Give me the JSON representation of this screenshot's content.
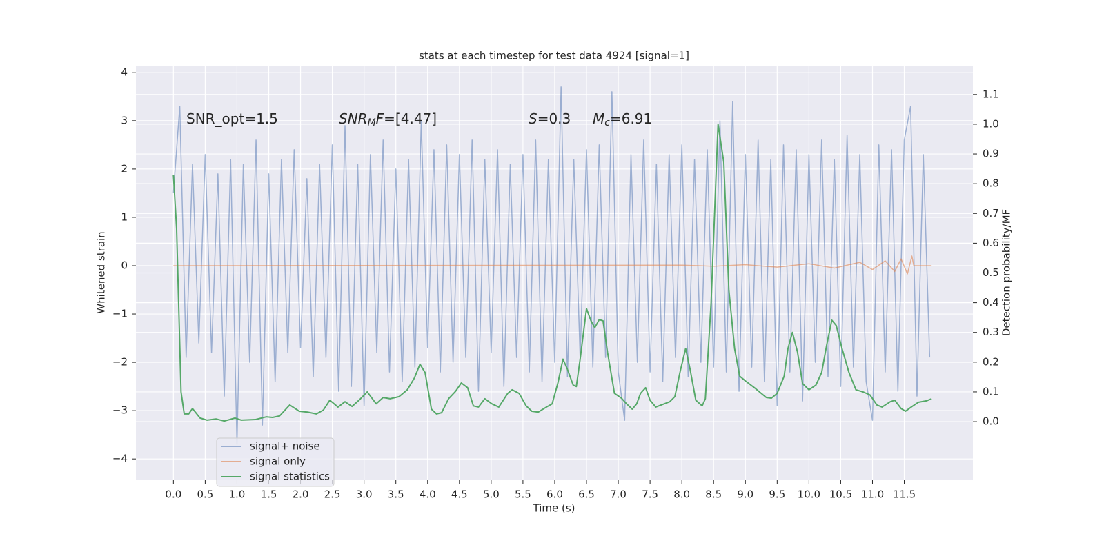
{
  "chart_data": {
    "type": "line",
    "title": "stats at each timestep for test data 4924 [signal=1]",
    "xlabel": "Time (s)",
    "ylabel": "Whitened strain",
    "y2label": "Detection probability/MF",
    "xlim": [
      -0.59,
      12.58
    ],
    "ylim": [
      -4.44,
      4.14
    ],
    "y2lim": [
      -0.197,
      1.197
    ],
    "xticks": [
      {
        "value": 0,
        "label": "0.0"
      },
      0.5,
      {
        "value": 1,
        "label": "1.0"
      },
      1.5,
      {
        "value": 2,
        "label": "2.0"
      },
      2.5,
      {
        "value": 3,
        "label": "3.0"
      },
      3.5,
      {
        "value": 4,
        "label": "4.0"
      },
      4.5,
      {
        "value": 5,
        "label": "5.0"
      },
      5.5,
      {
        "value": 6,
        "label": "6.0"
      },
      6.5,
      {
        "value": 7,
        "label": "7.0"
      },
      7.5,
      {
        "value": 8,
        "label": "8.0"
      },
      8.5,
      {
        "value": 9,
        "label": "9.0"
      },
      9.5,
      {
        "value": 10,
        "label": "10.0"
      },
      10.5,
      {
        "value": 11,
        "label": "11.0"
      },
      11.5
    ],
    "yticks": [
      {
        "value": -4,
        "label": "−4"
      },
      {
        "value": -3,
        "label": "−3"
      },
      {
        "value": -2,
        "label": "−2"
      },
      {
        "value": -1,
        "label": "−1"
      },
      0,
      1,
      2,
      3,
      4
    ],
    "y2ticks": [
      {
        "value": 0,
        "label": "0.0"
      },
      0.1,
      0.2,
      0.3,
      0.4,
      0.5,
      0.6,
      0.7,
      0.8,
      0.9,
      {
        "value": 1,
        "label": "1.0"
      },
      1.1
    ],
    "grid": true,
    "legend": "lower left",
    "x": [
      0,
      0.1,
      0.2,
      0.3,
      0.4,
      0.5,
      0.6,
      0.7,
      0.8,
      0.9,
      1,
      1.1,
      1.2,
      1.3,
      1.4,
      1.5,
      1.6,
      1.7,
      1.8,
      1.9,
      2,
      2.1,
      2.2,
      2.3,
      2.4,
      2.5,
      2.6,
      2.7,
      2.8,
      2.9,
      3,
      3.1,
      3.2,
      3.3,
      3.4,
      3.5,
      3.6,
      3.7,
      3.8,
      3.9,
      4,
      4.1,
      4.2,
      4.3,
      4.4,
      4.5,
      4.6,
      4.7,
      4.8,
      4.9,
      5,
      5.1,
      5.2,
      5.3,
      5.4,
      5.5,
      5.6,
      5.7,
      5.8,
      5.9,
      6,
      6.1,
      6.2,
      6.3,
      6.4,
      6.5,
      6.6,
      6.7,
      6.8,
      6.9,
      7,
      7.1,
      7.2,
      7.3,
      7.4,
      7.5,
      7.6,
      7.7,
      7.8,
      7.9,
      8,
      8.1,
      8.2,
      8.3,
      8.4,
      8.5,
      8.6,
      8.7,
      8.8,
      8.9,
      9,
      9.1,
      9.2,
      9.3,
      9.4,
      9.5,
      9.6,
      9.7,
      9.8,
      9.9,
      10,
      10.1,
      10.2,
      10.3,
      10.4,
      10.5,
      10.6,
      10.7,
      10.8,
      10.9,
      11,
      11.1,
      11.2,
      11.3,
      11.4,
      11.5,
      11.6,
      11.7,
      11.8,
      11.9
    ],
    "series": [
      {
        "name": "signal+ noise",
        "color": "#4c72b0",
        "alpha": 0.5,
        "values": [
          1.5,
          3.3,
          -1.9,
          2.1,
          -1.6,
          2.3,
          -1.8,
          1.9,
          -2.7,
          2.2,
          -3.7,
          2.1,
          -2.0,
          2.6,
          -3.3,
          1.9,
          -2.4,
          2.2,
          -1.8,
          2.4,
          -1.7,
          1.8,
          -2.3,
          2.1,
          -1.9,
          2.5,
          -2.6,
          2.9,
          -2.5,
          2.1,
          -2.9,
          2.3,
          -1.8,
          2.6,
          -2.2,
          2.0,
          -2.4,
          2.2,
          -2.1,
          3.0,
          -1.7,
          2.4,
          -2.2,
          2.5,
          -2.0,
          2.3,
          -1.9,
          2.6,
          -2.6,
          2.2,
          -1.8,
          2.4,
          -2.5,
          2.1,
          -1.9,
          2.3,
          -2.2,
          2.6,
          -2.4,
          2.2,
          -2.0,
          3.7,
          -2.3,
          2.2,
          -1.9,
          2.4,
          -2.1,
          2.5,
          -1.9,
          3.6,
          -2.2,
          -3.2,
          2.3,
          -2.0,
          2.6,
          -2.2,
          2.1,
          -2.4,
          2.3,
          -1.9,
          2.5,
          -2.3,
          2.2,
          -2.0,
          2.4,
          -2.1,
          3.0,
          -2.2,
          3.4,
          -2.6,
          2.3,
          -2.1,
          2.6,
          -2.4,
          2.2,
          -2.9,
          2.5,
          -2.2,
          2.4,
          -2.8,
          2.3,
          -2.0,
          2.6,
          -2.3,
          2.2,
          -2.5,
          2.7,
          -2.1,
          2.3,
          -2.4,
          -3.2,
          2.5,
          -2.2,
          2.4,
          -2.6,
          2.6,
          3.3,
          -2.7,
          2.3,
          -1.9
        ]
      },
      {
        "name": "signal only",
        "color": "#dd8452",
        "alpha": 0.6,
        "x": [
          0,
          8,
          8.5,
          9,
          9.5,
          10,
          10.4,
          10.8,
          11,
          11.2,
          11.35,
          11.45,
          11.55,
          11.62,
          11.65,
          11.7,
          11.93
        ],
        "values": [
          0,
          0.01,
          -0.01,
          0.02,
          -0.03,
          0.04,
          -0.05,
          0.07,
          -0.08,
          0.1,
          -0.12,
          0.14,
          -0.17,
          0.2,
          0,
          0,
          0
        ]
      },
      {
        "name": "signal statistics",
        "color": "#55a868",
        "alpha": 1,
        "axis": "y2",
        "x": [
          0,
          0.05,
          0.12,
          0.17,
          0.24,
          0.3,
          0.42,
          0.53,
          0.67,
          0.8,
          0.97,
          1.07,
          1.29,
          1.46,
          1.56,
          1.67,
          1.83,
          1.98,
          2.11,
          2.25,
          2.36,
          2.46,
          2.59,
          2.7,
          2.81,
          2.92,
          3.05,
          3.19,
          3.3,
          3.41,
          3.55,
          3.68,
          3.79,
          3.88,
          3.96,
          4.06,
          4.14,
          4.22,
          4.33,
          4.44,
          4.53,
          4.63,
          4.72,
          4.8,
          4.9,
          5.01,
          5.12,
          5.26,
          5.33,
          5.44,
          5.55,
          5.64,
          5.74,
          5.87,
          5.96,
          6.05,
          6.13,
          6.2,
          6.29,
          6.34,
          6.4,
          6.5,
          6.57,
          6.63,
          6.7,
          6.76,
          6.83,
          6.94,
          7.05,
          7.13,
          7.22,
          7.29,
          7.35,
          7.43,
          7.5,
          7.59,
          7.7,
          7.81,
          7.89,
          7.97,
          8.06,
          8.13,
          8.22,
          8.32,
          8.37,
          8.46,
          8.57,
          8.66,
          8.74,
          8.83,
          8.91,
          9,
          9.16,
          9.33,
          9.41,
          9.5,
          9.61,
          9.67,
          9.74,
          9.82,
          9.9,
          10,
          10.11,
          10.2,
          10.28,
          10.36,
          10.43,
          10.52,
          10.63,
          10.74,
          10.85,
          10.96,
          11.07,
          11.15,
          11.28,
          11.35,
          11.45,
          11.52,
          11.61,
          11.72,
          11.85,
          11.93
        ],
        "values": [
          0.83,
          0.65,
          0.1,
          0.026,
          0.026,
          0.044,
          0.012,
          0.005,
          0.009,
          0.002,
          0.012,
          0.005,
          0.007,
          0.016,
          0.014,
          0.019,
          0.056,
          0.035,
          0.032,
          0.026,
          0.039,
          0.072,
          0.049,
          0.067,
          0.051,
          0.072,
          0.1,
          0.06,
          0.081,
          0.077,
          0.084,
          0.107,
          0.146,
          0.193,
          0.165,
          0.042,
          0.026,
          0.03,
          0.077,
          0.102,
          0.13,
          0.114,
          0.053,
          0.049,
          0.077,
          0.06,
          0.049,
          0.095,
          0.107,
          0.095,
          0.053,
          0.035,
          0.032,
          0.049,
          0.06,
          0.13,
          0.21,
          0.176,
          0.123,
          0.118,
          0.21,
          0.38,
          0.339,
          0.316,
          0.343,
          0.339,
          0.234,
          0.095,
          0.079,
          0.06,
          0.042,
          0.06,
          0.095,
          0.114,
          0.072,
          0.049,
          0.058,
          0.067,
          0.084,
          0.165,
          0.246,
          0.176,
          0.072,
          0.053,
          0.077,
          0.397,
          1.0,
          0.872,
          0.443,
          0.246,
          0.153,
          0.137,
          0.111,
          0.081,
          0.079,
          0.095,
          0.153,
          0.246,
          0.3,
          0.234,
          0.128,
          0.107,
          0.123,
          0.165,
          0.258,
          0.341,
          0.323,
          0.246,
          0.165,
          0.107,
          0.1,
          0.09,
          0.056,
          0.049,
          0.067,
          0.072,
          0.044,
          0.035,
          0.049,
          0.065,
          0.07,
          0.077
        ]
      }
    ],
    "annotations": [
      [
        {
          "text": "SNR_opt=1.5"
        }
      ],
      [
        {
          "text": "SNR",
          "italic": true
        },
        {
          "text": "M",
          "italic": true,
          "sub": true
        },
        {
          "text": "F",
          "italic": true
        },
        {
          "text": "=[4.47]"
        }
      ],
      [
        {
          "text": "S",
          "italic": true
        },
        {
          "text": "=0.3"
        }
      ],
      [
        {
          "text": "M",
          "italic": true
        },
        {
          "text": "c",
          "italic": true,
          "sub": true
        },
        {
          "text": "=6.91"
        }
      ]
    ]
  }
}
